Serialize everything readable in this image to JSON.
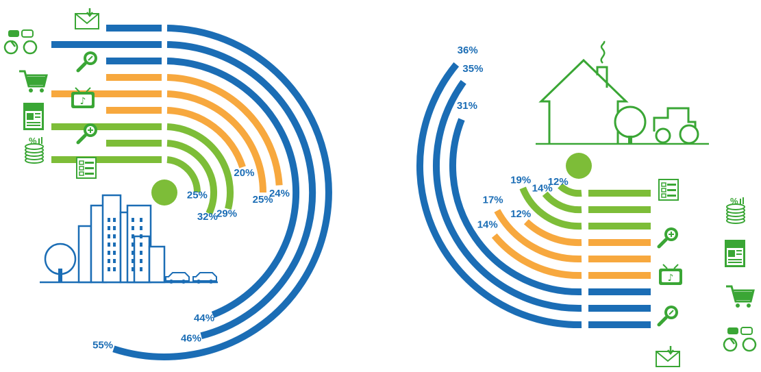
{
  "colors": {
    "blue": "#1b6db5",
    "orange": "#f7a83e",
    "green": "#7dbd38",
    "icon_blue": "#1b6db5",
    "icon_green": "#3aa635",
    "white": "#ffffff"
  },
  "chart_data": [
    {
      "type": "radial-bar",
      "scene": "city-icon",
      "series": [
        {
          "icon": "sms-chat-icon",
          "category_color": "blue",
          "value": 55,
          "label": "55%"
        },
        {
          "icon": "email-icon",
          "category_color": "blue",
          "value": 46,
          "label": "46%"
        },
        {
          "icon": "search-icon",
          "category_color": "blue",
          "value": 44,
          "label": "44%"
        },
        {
          "icon": "shopping-cart-icon",
          "category_color": "orange",
          "value": 24,
          "label": "24%"
        },
        {
          "icon": "tv-icon",
          "category_color": "orange",
          "value": 25,
          "label": "25%"
        },
        {
          "icon": "newspaper-icon",
          "category_color": "orange",
          "value": 20,
          "label": "20%"
        },
        {
          "icon": "zoom-in-search-icon",
          "category_color": "green",
          "value": 29,
          "label": "29%"
        },
        {
          "icon": "coins-percent-icon",
          "category_color": "green",
          "value": 32,
          "label": "32%"
        },
        {
          "icon": "checklist-icon",
          "category_color": "green",
          "value": 25,
          "label": "25%"
        }
      ]
    },
    {
      "type": "radial-bar",
      "scene": "farm-house-icon",
      "series": [
        {
          "icon": "checklist-icon",
          "category_color": "green",
          "value": 12,
          "label": "12%"
        },
        {
          "icon": "coins-percent-icon",
          "category_color": "green",
          "value": 14,
          "label": "14%"
        },
        {
          "icon": "zoom-in-search-icon",
          "category_color": "green",
          "value": 19,
          "label": "19%"
        },
        {
          "icon": "newspaper-icon",
          "category_color": "orange",
          "value": 12,
          "label": "12%"
        },
        {
          "icon": "tv-icon",
          "category_color": "orange",
          "value": 17,
          "label": "17%"
        },
        {
          "icon": "shopping-cart-icon",
          "category_color": "orange",
          "value": 14,
          "label": "14%"
        },
        {
          "icon": "search-icon",
          "category_color": "blue",
          "value": 31,
          "label": "31%"
        },
        {
          "icon": "sms-chat-icon",
          "category_color": "blue",
          "value": 35,
          "label": "35%"
        },
        {
          "icon": "email-icon",
          "category_color": "blue",
          "value": 36,
          "label": "36%"
        }
      ]
    }
  ]
}
